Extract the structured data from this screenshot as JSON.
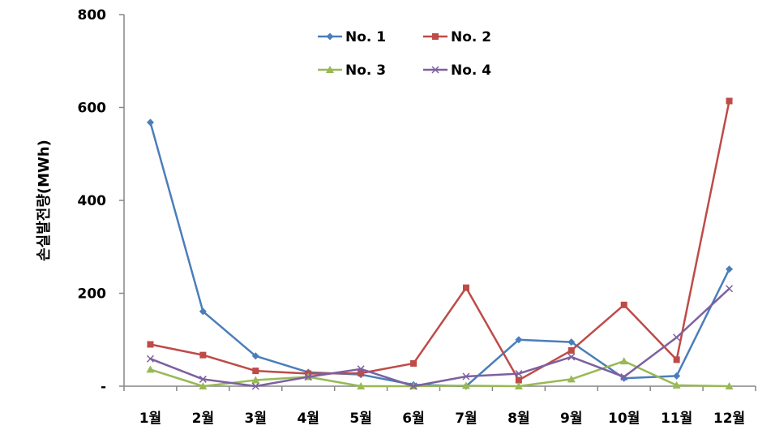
{
  "chart_data": {
    "type": "line",
    "title": "",
    "xlabel": "",
    "ylabel": "손실발전량(MWh)",
    "categories": [
      "1월",
      "2월",
      "3월",
      "4월",
      "5월",
      "6월",
      "7월",
      "8월",
      "9월",
      "10월",
      "11월",
      "12월"
    ],
    "ylim": [
      0,
      800
    ],
    "yticks": [
      {
        "value": 0,
        "label": "-"
      },
      {
        "value": 200,
        "label": "200"
      },
      {
        "value": 400,
        "label": "400"
      },
      {
        "value": 600,
        "label": "600"
      },
      {
        "value": 800,
        "label": "800"
      }
    ],
    "grid": false,
    "legend_position": "top-center",
    "series": [
      {
        "name": "No. 1",
        "color": "#4a7ebb",
        "marker": "diamond",
        "values": [
          568,
          161,
          65,
          30,
          25,
          3,
          0,
          100,
          95,
          17,
          22,
          252
        ]
      },
      {
        "name": "No. 2",
        "color": "#be4b48",
        "marker": "square",
        "values": [
          90,
          67,
          33,
          27,
          28,
          49,
          212,
          13,
          77,
          175,
          57,
          614
        ]
      },
      {
        "name": "No. 3",
        "color": "#98b954",
        "marker": "triangle",
        "values": [
          36,
          0,
          13,
          20,
          0,
          0,
          1,
          0,
          15,
          54,
          2,
          0
        ]
      },
      {
        "name": "No. 4",
        "color": "#7d60a0",
        "marker": "x",
        "values": [
          59,
          15,
          0,
          20,
          37,
          0,
          21,
          27,
          63,
          20,
          105,
          210
        ]
      }
    ]
  }
}
